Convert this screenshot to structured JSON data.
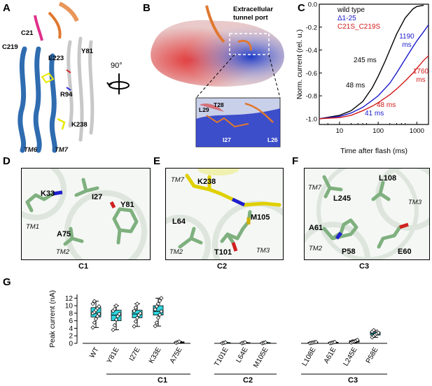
{
  "panels": {
    "A": {
      "letter": "A",
      "labels": [
        "C21",
        "C219",
        "E223",
        "Y81",
        "R94",
        "K238"
      ],
      "tm_labels": [
        "TM6",
        "TM7"
      ],
      "rotation": "90°"
    },
    "B": {
      "letter": "B",
      "port_label": "Extracellular tunnel port",
      "inset_labels": [
        "T28",
        "L29",
        "I27",
        "L26"
      ]
    },
    "C": {
      "letter": "C",
      "legend": [
        {
          "name": "wild type",
          "color": "#000000"
        },
        {
          "name": "Δ1-25",
          "color": "#1a1acc"
        },
        {
          "name": "C21S_C219S",
          "color": "#d41a1a"
        }
      ],
      "annotations": [
        "245 ms",
        "48 ms",
        "1190 ms",
        "1760 ms",
        "48 ms",
        "41 ms"
      ],
      "ylabel": "Norm. current (rel. u.)",
      "xlabel": "Time after flash (ms)",
      "yticks": [
        "0.0",
        "-0.2",
        "-0.4",
        "-0.6",
        "-0.8",
        "-1.0"
      ],
      "xticks": [
        "10",
        "100",
        "1000"
      ]
    },
    "D": {
      "letter": "D",
      "caption": "C1",
      "residues": [
        "K33",
        "I27",
        "Y81",
        "A75"
      ],
      "tm_labels": [
        "TM1",
        "TM2"
      ]
    },
    "E": {
      "letter": "E",
      "caption": "C2",
      "residues": [
        "K238",
        "L64",
        "M105",
        "T101"
      ],
      "tm_labels": [
        "TM7",
        "TM2",
        "TM3"
      ]
    },
    "F": {
      "letter": "F",
      "caption": "C3",
      "residues": [
        "L245",
        "L108",
        "A61",
        "P58",
        "E60"
      ],
      "tm_labels": [
        "TM7",
        "TM3",
        "TM2"
      ]
    },
    "G": {
      "letter": "G",
      "group_labels": [
        "C1",
        "C2",
        "C3"
      ]
    }
  },
  "chart_data": [
    {
      "type": "line",
      "panel": "C",
      "xscale": "log",
      "xlabel": "Time after flash (ms)",
      "ylabel": "Norm. current (rel. u.)",
      "xlim": [
        3,
        2000
      ],
      "ylim": [
        -1.05,
        0.0
      ],
      "series": [
        {
          "name": "wild type",
          "color": "#000000",
          "x": [
            3,
            10,
            20,
            40,
            70,
            100,
            150,
            200,
            300,
            500,
            800,
            1000,
            1500
          ],
          "y": [
            -1.0,
            -0.97,
            -0.93,
            -0.85,
            -0.73,
            -0.63,
            -0.5,
            -0.4,
            -0.26,
            -0.12,
            -0.04,
            -0.02,
            -0.01
          ]
        },
        {
          "name": "Δ1-25",
          "color": "#1a1acc",
          "x": [
            3,
            10,
            20,
            40,
            70,
            100,
            200,
            300,
            500,
            800,
            1000,
            1500,
            2000
          ],
          "y": [
            -1.0,
            -0.98,
            -0.95,
            -0.9,
            -0.84,
            -0.8,
            -0.69,
            -0.6,
            -0.48,
            -0.37,
            -0.32,
            -0.24,
            -0.18
          ]
        },
        {
          "name": "C21S_C219S",
          "color": "#d41a1a",
          "x": [
            3,
            10,
            20,
            40,
            70,
            100,
            200,
            300,
            500,
            800,
            1000,
            1500,
            2000
          ],
          "y": [
            -1.0,
            -0.99,
            -0.97,
            -0.93,
            -0.89,
            -0.86,
            -0.79,
            -0.74,
            -0.67,
            -0.6,
            -0.56,
            -0.49,
            -0.45
          ]
        }
      ]
    },
    {
      "type": "box",
      "panel": "G",
      "ylabel": "Peak current (nA)",
      "ylim": [
        0,
        13
      ],
      "yticks": [
        0,
        2,
        4,
        6,
        8,
        10,
        12
      ],
      "categories": [
        "WT",
        "Y81E",
        "I27E",
        "K33E",
        "A75E",
        "T101E",
        "L64E",
        "M105E",
        "L108E",
        "A61E",
        "L245E",
        "P58E"
      ],
      "groups": [
        {
          "label": "C1",
          "categories": [
            "Y81E",
            "I27E",
            "K33E",
            "A75E"
          ]
        },
        {
          "label": "C2",
          "categories": [
            "T101E",
            "L64E",
            "M105E"
          ]
        },
        {
          "label": "C3",
          "categories": [
            "L108E",
            "A61E",
            "L245E",
            "P58E"
          ]
        }
      ],
      "boxes": [
        {
          "q1": 7.0,
          "median": 8.0,
          "q3": 9.5,
          "min": 4.2,
          "max": 11.2,
          "points": [
            4.2,
            5.5,
            6.5,
            7.2,
            7.8,
            8.0,
            8.3,
            8.8,
            9.3,
            9.8,
            10.5,
            11.2
          ]
        },
        {
          "q1": 6.0,
          "median": 7.5,
          "q3": 8.8,
          "min": 3.6,
          "max": 10.0,
          "points": [
            3.6,
            4.8,
            6.3,
            7.2,
            7.8,
            8.6,
            9.1,
            10.0
          ]
        },
        {
          "q1": 6.8,
          "median": 7.8,
          "q3": 8.8,
          "min": 4.5,
          "max": 10.5,
          "points": [
            4.5,
            5.8,
            6.8,
            7.5,
            8.0,
            8.6,
            9.5,
            10.5
          ]
        },
        {
          "q1": 7.5,
          "median": 8.5,
          "q3": 10.0,
          "min": 4.6,
          "max": 12.0,
          "points": [
            4.6,
            5.5,
            6.8,
            7.6,
            8.5,
            9.0,
            9.8,
            10.5,
            11.3,
            12.0
          ]
        },
        {
          "q1": 0.2,
          "median": 0.3,
          "q3": 0.4,
          "min": 0.15,
          "max": 0.5,
          "points": [
            0.15,
            0.3,
            0.45
          ]
        },
        {
          "q1": 0.1,
          "median": 0.15,
          "q3": 0.2,
          "min": 0.05,
          "max": 0.25,
          "points": [
            0.05,
            0.15,
            0.25
          ]
        },
        {
          "q1": 0.1,
          "median": 0.15,
          "q3": 0.2,
          "min": 0.05,
          "max": 0.25,
          "points": [
            0.05,
            0.15,
            0.25
          ]
        },
        {
          "q1": 0.1,
          "median": 0.15,
          "q3": 0.2,
          "min": 0.05,
          "max": 0.25,
          "points": [
            0.05,
            0.15,
            0.25
          ]
        },
        {
          "q1": 0.1,
          "median": 0.2,
          "q3": 0.3,
          "min": 0.05,
          "max": 0.35,
          "points": [
            0.05,
            0.15,
            0.2,
            0.3,
            0.35
          ]
        },
        {
          "q1": 0.1,
          "median": 0.2,
          "q3": 0.3,
          "min": 0.05,
          "max": 0.35,
          "points": [
            0.05,
            0.15,
            0.25,
            0.35
          ]
        },
        {
          "q1": 0.3,
          "median": 0.5,
          "q3": 0.7,
          "min": 0.2,
          "max": 0.9,
          "points": [
            0.2,
            0.4,
            0.5,
            0.7,
            0.9
          ]
        },
        {
          "q1": 2.2,
          "median": 2.6,
          "q3": 3.0,
          "min": 1.6,
          "max": 3.5,
          "points": [
            1.6,
            2.0,
            2.3,
            2.6,
            2.8,
            3.1,
            3.5
          ]
        }
      ]
    }
  ]
}
